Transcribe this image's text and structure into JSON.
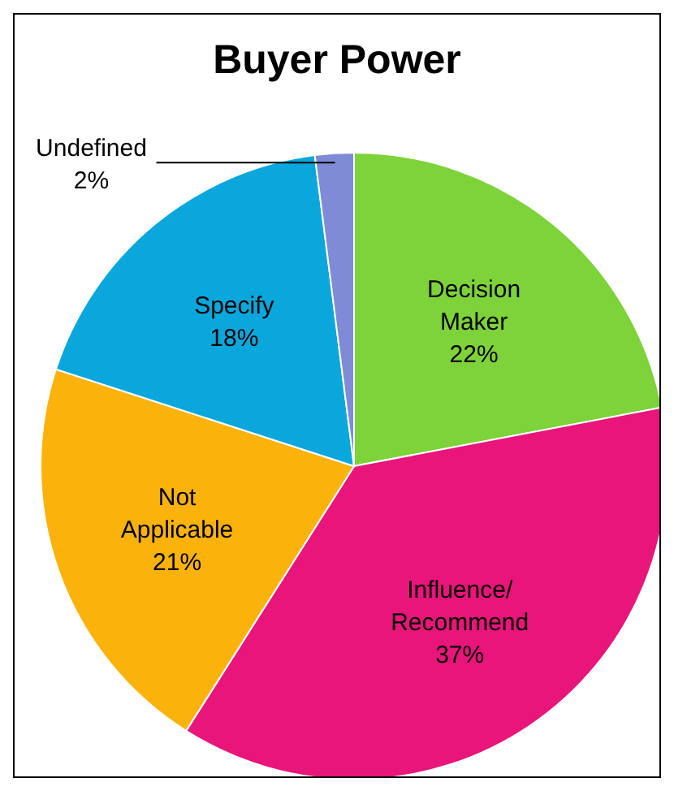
{
  "chart_data": {
    "type": "pie",
    "title": "Buyer Power",
    "categories": [
      "Decision Maker",
      "Influence/ Recommend",
      "Not Applicable",
      "Specify",
      "Undefined"
    ],
    "values": [
      22,
      37,
      21,
      18,
      2
    ],
    "value_labels": [
      "22%",
      "37%",
      "21%",
      "18%",
      "2%"
    ],
    "colors": [
      "#7ed23a",
      "#e8157a",
      "#fbb30c",
      "#0aa7dc",
      "#7f8bd6"
    ]
  }
}
